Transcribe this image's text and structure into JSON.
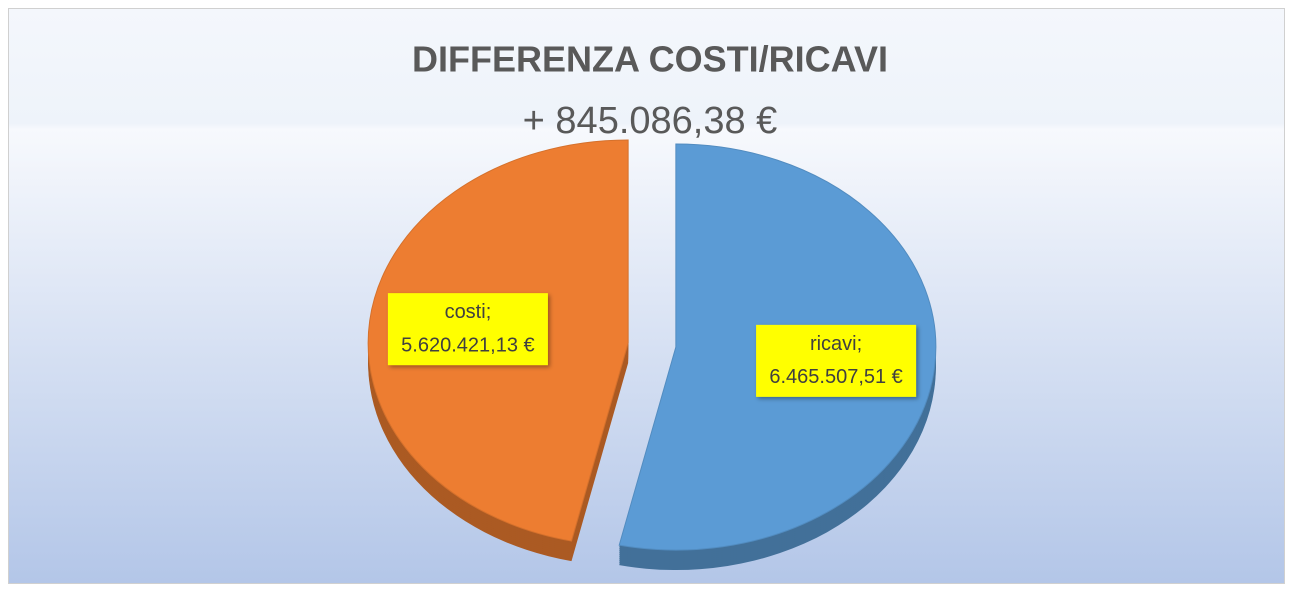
{
  "chart_data": {
    "type": "pie",
    "title": "DIFFERENZA COSTI/RICAVI",
    "subtitle": "+ 845.086,38 €",
    "categories": [
      "costi",
      "ricavi"
    ],
    "label_separator": ";",
    "values": [
      5620421.13,
      6465507.51
    ],
    "value_labels": [
      "5.620.421,13 €",
      "6.465.507,51 €"
    ],
    "colors": [
      "#ed7d31",
      "#5b9bd5"
    ],
    "label_background": "#ffff00"
  }
}
